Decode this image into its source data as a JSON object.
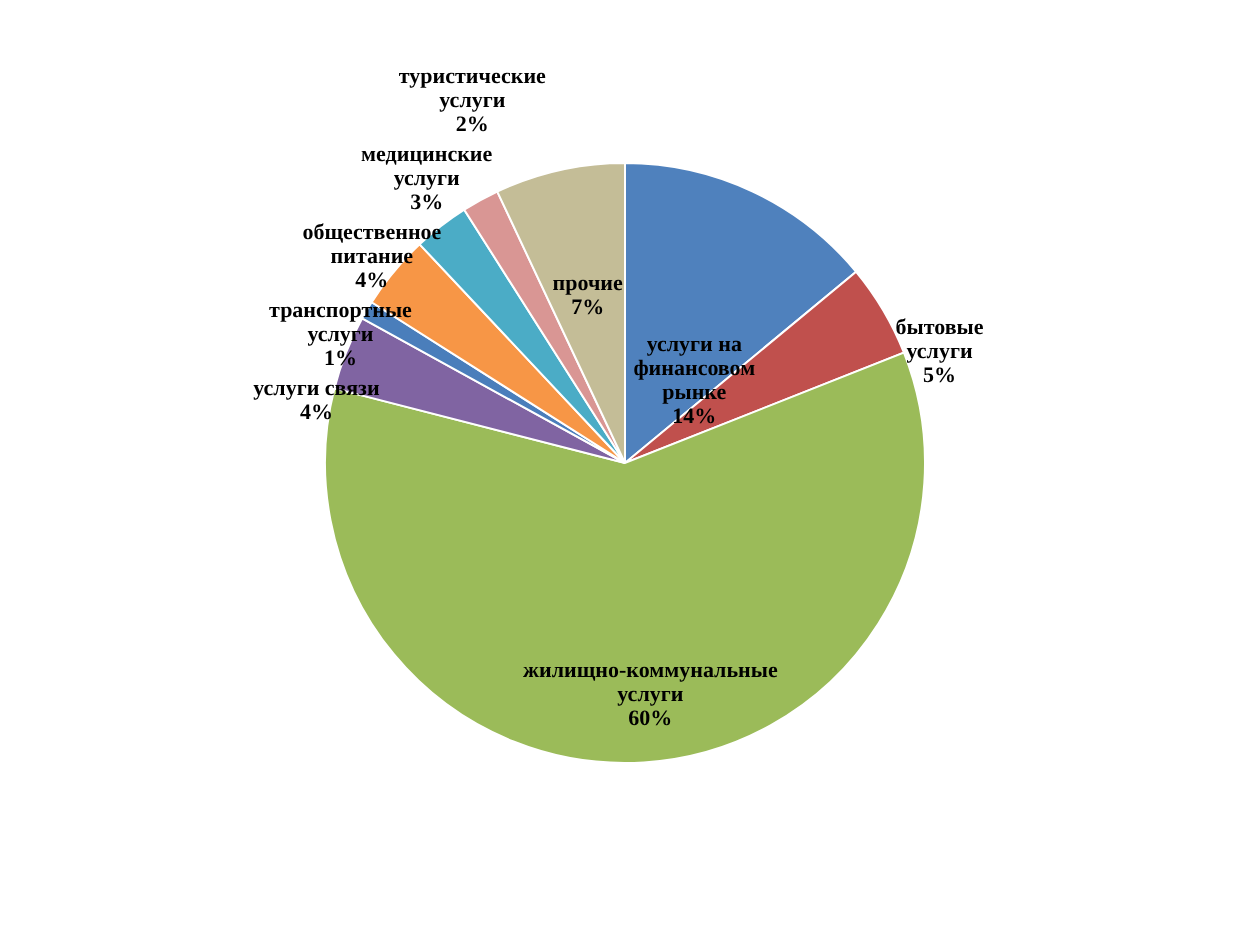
{
  "chart_data": {
    "type": "pie",
    "categories": [
      "услуги на финансовом рынке",
      "бытовые услуги",
      "жилищно-коммунальные услуги",
      "услуги связи",
      "транспортные услуги",
      "общественное питание",
      "медицинские услуги",
      "туристические услуги",
      "прочие"
    ],
    "values": [
      14,
      5,
      60,
      4,
      1,
      4,
      3,
      2,
      7
    ],
    "value_labels": [
      "14%",
      "5%",
      "60%",
      "4%",
      "1%",
      "4%",
      "3%",
      "2%",
      "7%"
    ],
    "colors": [
      "#4f81bd",
      "#c0504d",
      "#9bbb59",
      "#8064a2",
      "#4a7ebb",
      "#f79646",
      "#4bacc6",
      "#d99694",
      "#c4bd97"
    ]
  }
}
